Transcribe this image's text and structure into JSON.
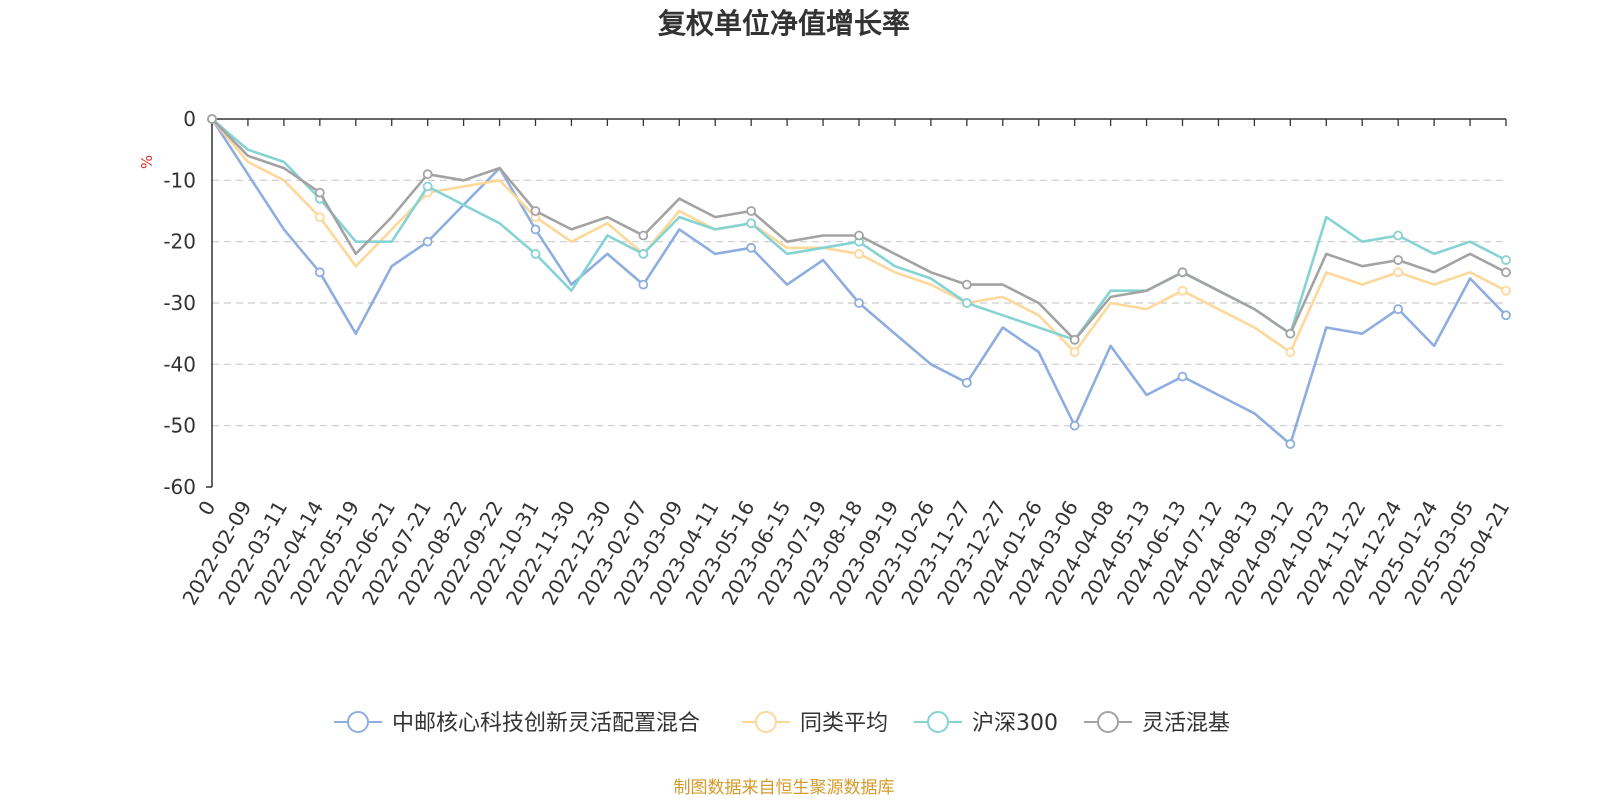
{
  "chart_data": {
    "type": "line",
    "title": "复权单位净值增长率",
    "ylabel": "%",
    "ylim": [
      -60,
      0
    ],
    "y_ticks": [
      "0",
      "-10",
      "-20",
      "-30",
      "-40",
      "-50",
      "-60"
    ],
    "x_tick_labels": [
      "0",
      "2022-02-09",
      "2022-03-11",
      "2022-04-14",
      "2022-05-19",
      "2022-06-21",
      "2022-07-21",
      "2022-08-22",
      "2022-09-22",
      "2022-10-31",
      "2022-11-30",
      "2022-12-30",
      "2023-02-07",
      "2023-03-09",
      "2023-04-11",
      "2023-05-16",
      "2023-06-15",
      "2023-07-19",
      "2023-08-18",
      "2023-09-19",
      "2023-10-26",
      "2023-11-27",
      "2023-12-27",
      "2024-01-26",
      "2024-03-06",
      "2024-04-08",
      "2024-05-13",
      "2024-06-13",
      "2024-07-12",
      "2024-08-13",
      "2024-09-12",
      "2024-10-23",
      "2024-11-22",
      "2024-12-24",
      "2025-01-24",
      "2025-03-05",
      "2025-04-21"
    ],
    "series": [
      {
        "name": "中邮核心科技创新灵活配置混合",
        "color": "#8eaedf",
        "values": [
          0,
          -9,
          -18,
          -25,
          -35,
          -24,
          -20,
          -14,
          -8,
          -18,
          -27,
          -22,
          -27,
          -18,
          -22,
          -21,
          -27,
          -23,
          -30,
          -35,
          -40,
          -43,
          -34,
          -38,
          -50,
          -37,
          -45,
          -42,
          -45,
          -48,
          -53,
          -34,
          -35,
          -31,
          -37,
          -26,
          -32
        ]
      },
      {
        "name": "同类平均",
        "color": "#fdd89a",
        "values": [
          0,
          -7,
          -10,
          -16,
          -24,
          -18,
          -12,
          -11,
          -10,
          -16,
          -20,
          -17,
          -22,
          -15,
          -18,
          -17,
          -21,
          -21,
          -22,
          -25,
          -27,
          -30,
          -29,
          -32,
          -38,
          -30,
          -31,
          -28,
          -31,
          -34,
          -38,
          -25,
          -27,
          -25,
          -27,
          -25,
          -28
        ]
      },
      {
        "name": "沪深300",
        "color": "#86d3d4",
        "values": [
          0,
          -5,
          -7,
          -13,
          -20,
          -20,
          -11,
          -14,
          -17,
          -22,
          -28,
          -19,
          -22,
          -16,
          -18,
          -17,
          -22,
          -21,
          -20,
          -24,
          -26,
          -30,
          -32,
          -34,
          -36,
          -28,
          -28,
          -25,
          -28,
          -31,
          -35,
          -16,
          -20,
          -19,
          -22,
          -20,
          -23
        ]
      },
      {
        "name": "灵活混基",
        "color": "#a3a3a3",
        "values": [
          0,
          -6,
          -8,
          -12,
          -22,
          -16,
          -9,
          -10,
          -8,
          -15,
          -18,
          -16,
          -19,
          -13,
          -16,
          -15,
          -20,
          -19,
          -19,
          -22,
          -25,
          -27,
          -27,
          -30,
          -36,
          -29,
          -28,
          -25,
          -28,
          -31,
          -35,
          -22,
          -24,
          -23,
          -25,
          -22,
          -25
        ]
      }
    ]
  },
  "source_note": "制图数据来自恒生聚源数据库"
}
